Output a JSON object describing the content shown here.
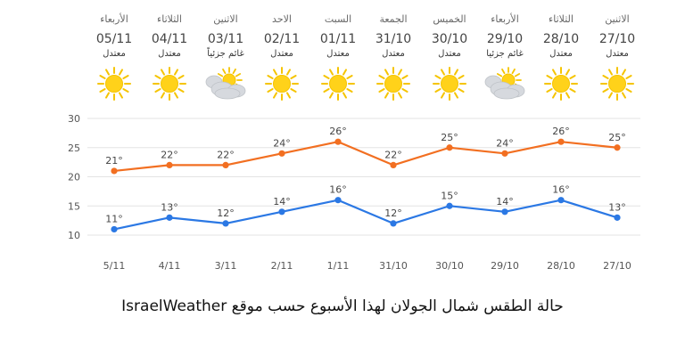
{
  "forecast": [
    {
      "day": "الأربعاء",
      "date": "05/11",
      "condition": "معتدل",
      "icon": "sun-icon"
    },
    {
      "day": "الثلاثاء",
      "date": "04/11",
      "condition": "معتدل",
      "icon": "sun-icon"
    },
    {
      "day": "الاثنين",
      "date": "03/11",
      "condition": "غائم جزئياً",
      "icon": "partly-cloudy-icon"
    },
    {
      "day": "الاحد",
      "date": "02/11",
      "condition": "معتدل",
      "icon": "sun-icon"
    },
    {
      "day": "السبت",
      "date": "01/11",
      "condition": "معتدل",
      "icon": "sun-icon"
    },
    {
      "day": "الجمعة",
      "date": "31/10",
      "condition": "معتدل",
      "icon": "sun-icon"
    },
    {
      "day": "الخميس",
      "date": "30/10",
      "condition": "معتدل",
      "icon": "sun-icon"
    },
    {
      "day": "الأربعاء",
      "date": "29/10",
      "condition": "غائم جزئيا",
      "icon": "partly-cloudy-icon"
    },
    {
      "day": "الثلاثاء",
      "date": "28/10",
      "condition": "معتدل",
      "icon": "sun-icon"
    },
    {
      "day": "الاثنين",
      "date": "27/10",
      "condition": "معتدل",
      "icon": "sun-icon"
    }
  ],
  "chart_data": {
    "type": "line",
    "categories": [
      "5/11",
      "4/11",
      "3/11",
      "2/11",
      "1/11",
      "31/10",
      "30/10",
      "29/10",
      "28/10",
      "27/10"
    ],
    "series": [
      {
        "values": [
          21,
          22,
          22,
          24,
          26,
          22,
          25,
          24,
          26,
          25
        ],
        "color": "#f26f21",
        "labels": [
          "21°",
          "22°",
          "22°",
          "24°",
          "26°",
          "22°",
          "25°",
          "24°",
          "26°",
          "25°"
        ]
      },
      {
        "values": [
          11,
          13,
          12,
          14,
          16,
          12,
          15,
          14,
          16,
          13
        ],
        "color": "#2b78e4",
        "labels": [
          "11°",
          "13°",
          "12°",
          "14°",
          "16°",
          "12°",
          "15°",
          "14°",
          "16°",
          "13°"
        ]
      }
    ],
    "yticks": [
      10,
      15,
      20,
      25,
      30
    ],
    "ylim": [
      10,
      30
    ],
    "grid": true
  },
  "caption": "حالة الطقس شمال الجولان لهذا الأسبوع حسب موقع IsraelWeather",
  "colors": {
    "sun": "#ffd21a",
    "sun_ray": "#f5c400",
    "cloud": "#d6d9de",
    "axis_text": "#555555",
    "grid": "#e3e3e3"
  }
}
